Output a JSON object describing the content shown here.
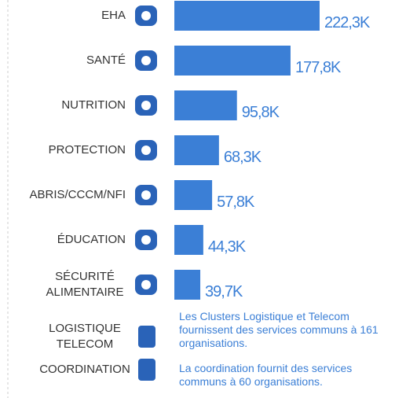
{
  "chart_data": {
    "type": "bar",
    "categories": [
      "EHA",
      "SANTÉ",
      "NUTRITION",
      "PROTECTION",
      "ABRIS/CCCM/NFI",
      "ÉDUCATION",
      "SÉCURITÉ ALIMENTAIRE"
    ],
    "values": [
      222.3,
      177.8,
      95.8,
      68.3,
      57.8,
      44.3,
      39.7
    ],
    "value_labels": [
      "222,3K",
      "177,8K",
      "95,8K",
      "68,3K",
      "57,8K",
      "44,3K",
      "39,7K"
    ],
    "color": "#3b7fd6",
    "annotations": [
      {
        "label": "LOGISTIQUE TELECOM",
        "text": "Les Clusters Logistique et Telecom fournissent des services communs à 161 organisations."
      },
      {
        "label": "COORDINATION",
        "text": "La coordination fournit des services communs à 60 organisations."
      }
    ]
  }
}
